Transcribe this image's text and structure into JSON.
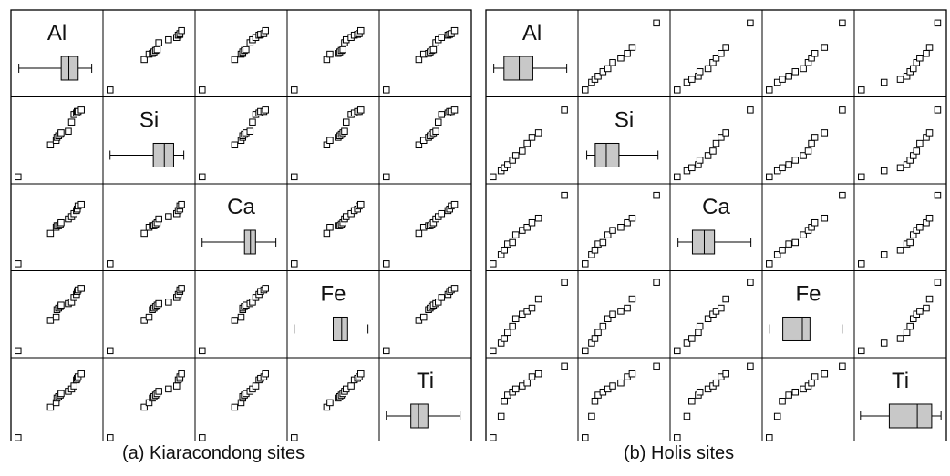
{
  "chart_data": [
    {
      "type": "scatter",
      "title": "",
      "caption": "(a)  Kiaracondong sites",
      "variables": [
        "Al",
        "Si",
        "Ca",
        "Fe",
        "Ti"
      ],
      "box_summaries": {
        "Al": {
          "min": 0.05,
          "q1": 0.55,
          "median": 0.64,
          "q3": 0.75,
          "max": 0.91
        },
        "Si": {
          "min": 0.04,
          "q1": 0.55,
          "median": 0.68,
          "q3": 0.79,
          "max": 0.91
        },
        "Ca": {
          "min": 0.04,
          "q1": 0.54,
          "median": 0.61,
          "q3": 0.67,
          "max": 0.91
        },
        "Fe": {
          "min": 0.04,
          "q1": 0.5,
          "median": 0.6,
          "q3": 0.67,
          "max": 0.91
        },
        "Ti": {
          "min": 0.04,
          "q1": 0.33,
          "median": 0.42,
          "q3": 0.53,
          "max": 0.91
        }
      },
      "values": {
        "Al": [
          0.02,
          0.42,
          0.49,
          0.5,
          0.52,
          0.54,
          0.55,
          0.64,
          0.68,
          0.71,
          0.74,
          0.75,
          0.76,
          0.8
        ],
        "Si": [
          0.02,
          0.44,
          0.5,
          0.54,
          0.56,
          0.58,
          0.6,
          0.62,
          0.74,
          0.84,
          0.86,
          0.88,
          0.88,
          0.9
        ],
        "Ca": [
          0.02,
          0.42,
          0.5,
          0.52,
          0.52,
          0.54,
          0.56,
          0.61,
          0.64,
          0.68,
          0.72,
          0.74,
          0.78,
          0.8
        ],
        "Fe": [
          0.02,
          0.42,
          0.46,
          0.56,
          0.58,
          0.6,
          0.62,
          0.64,
          0.66,
          0.72,
          0.76,
          0.8,
          0.82,
          0.84
        ],
        "Ti": [
          0.02,
          0.42,
          0.48,
          0.54,
          0.56,
          0.58,
          0.6,
          0.63,
          0.66,
          0.7,
          0.78,
          0.8,
          0.82,
          0.86
        ]
      }
    },
    {
      "type": "scatter",
      "title": "",
      "caption": "(b) Holis sites",
      "variables": [
        "Al",
        "Si",
        "Ca",
        "Fe",
        "Ti"
      ],
      "box_summaries": {
        "Al": {
          "min": 0.05,
          "q1": 0.17,
          "median": 0.35,
          "q3": 0.51,
          "max": 0.91
        },
        "Si": {
          "min": 0.06,
          "q1": 0.16,
          "median": 0.29,
          "q3": 0.44,
          "max": 0.9
        },
        "Ca": {
          "min": 0.05,
          "q1": 0.22,
          "median": 0.36,
          "q3": 0.48,
          "max": 0.91
        },
        "Fe": {
          "min": 0.04,
          "q1": 0.2,
          "median": 0.43,
          "q3": 0.52,
          "max": 0.9
        },
        "Ti": {
          "min": 0.03,
          "q1": 0.37,
          "median": 0.7,
          "q3": 0.87,
          "max": 0.98
        }
      },
      "values": {
        "Al": [
          0.02,
          0.12,
          0.16,
          0.2,
          0.26,
          0.3,
          0.38,
          0.44,
          0.5,
          0.58,
          0.9
        ],
        "Si": [
          0.02,
          0.1,
          0.14,
          0.18,
          0.24,
          0.3,
          0.36,
          0.46,
          0.54,
          0.6,
          0.9
        ],
        "Ca": [
          0.02,
          0.14,
          0.2,
          0.28,
          0.3,
          0.4,
          0.46,
          0.5,
          0.56,
          0.62,
          0.92
        ],
        "Fe": [
          0.02,
          0.12,
          0.18,
          0.26,
          0.34,
          0.44,
          0.5,
          0.54,
          0.58,
          0.7,
          0.92
        ],
        "Ti": [
          0.02,
          0.3,
          0.5,
          0.58,
          0.62,
          0.66,
          0.7,
          0.74,
          0.82,
          0.86,
          0.96
        ]
      }
    }
  ]
}
